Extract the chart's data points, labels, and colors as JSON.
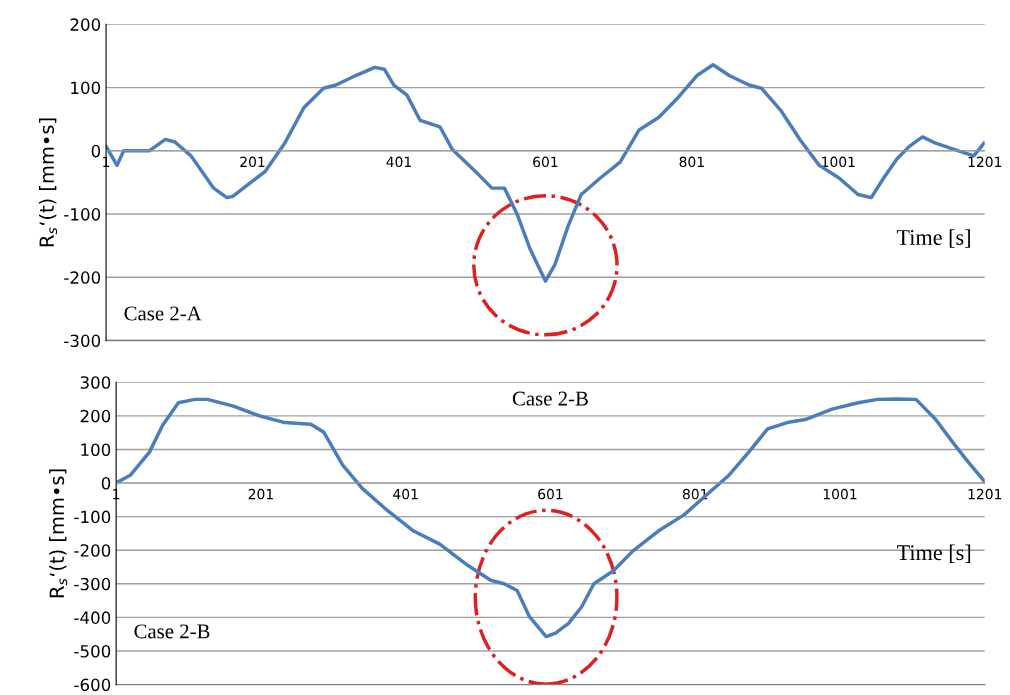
{
  "chart_data": [
    {
      "type": "line",
      "xlabel": "Time [s]",
      "ylabel": "R$_{s}$‘(t) [mm•s]",
      "annotations": [
        "Case 2-A"
      ],
      "series": [
        {
          "color": "#4a7ebb",
          "x": [
            1,
            16,
            25,
            60,
            82,
            95,
            117,
            148,
            166,
            174,
            201,
            218,
            245,
            271,
            298,
            315,
            342,
            368,
            381,
            394,
            412,
            430,
            457,
            474,
            510,
            528,
            545,
            562,
            580,
            601,
            614,
            632,
            650,
            676,
            703,
            729,
            756,
            782,
            808,
            830,
            852,
            879,
            896,
            923,
            949,
            975,
            1002,
            1028,
            1046,
            1063,
            1081,
            1098,
            1116,
            1134,
            1160,
            1186,
            1200
          ],
          "values": [
            7,
            -23,
            0,
            0,
            18,
            14,
            -8,
            -59,
            -74,
            -72,
            -48,
            -33,
            12,
            68,
            99,
            104,
            119,
            132,
            129,
            104,
            88,
            48,
            38,
            2,
            -38,
            -59,
            -59,
            -99,
            -155,
            -206,
            -180,
            -119,
            -69,
            -43,
            -18,
            33,
            53,
            84,
            119,
            136,
            119,
            104,
            99,
            63,
            17,
            -23,
            -43,
            -69,
            -74,
            -43,
            -13,
            7,
            22,
            12,
            2,
            -8,
            12
          ]
        }
      ],
      "xlim": [
        1,
        1201
      ],
      "xticks": [
        1,
        201,
        401,
        601,
        801,
        1001,
        1201
      ],
      "ylim": [
        -300,
        200
      ],
      "yticks": [
        -300,
        -200,
        -100,
        0,
        100,
        200
      ],
      "grid": "y",
      "line_style": "solid",
      "marker": "none"
    },
    {
      "type": "line",
      "xlabel": "Time [s]",
      "ylabel": "R$_{s}$‘(t) [mm•s]",
      "annotations": [
        "Case 2-B",
        "Case 2-B"
      ],
      "series": [
        {
          "color": "#4a7ebb",
          "x": [
            1,
            21,
            47,
            65,
            87,
            110,
            127,
            163,
            199,
            234,
            270,
            288,
            314,
            341,
            377,
            412,
            448,
            484,
            519,
            537,
            555,
            572,
            595,
            608,
            626,
            644,
            661,
            688,
            715,
            750,
            786,
            822,
            848,
            875,
            901,
            928,
            955,
            990,
            1026,
            1053,
            1080,
            1106,
            1133,
            1160,
            1178,
            1201
          ],
          "values": [
            0,
            24,
            92,
            171,
            239,
            249,
            249,
            229,
            200,
            180,
            175,
            151,
            53,
            -16,
            -84,
            -143,
            -182,
            -241,
            -290,
            -300,
            -320,
            -398,
            -457,
            -447,
            -418,
            -369,
            -300,
            -261,
            -202,
            -143,
            -94,
            -25,
            24,
            92,
            161,
            180,
            190,
            220,
            239,
            249,
            250,
            249,
            190,
            112,
            63,
            4
          ]
        }
      ],
      "xlim": [
        1,
        1201
      ],
      "xticks": [
        1,
        201,
        401,
        601,
        801,
        1001,
        1201
      ],
      "ylim": [
        -600,
        300
      ],
      "yticks": [
        -600,
        -500,
        -400,
        -300,
        -200,
        -100,
        0,
        100,
        200,
        300
      ],
      "grid": "y",
      "line_style": "solid",
      "marker": "none"
    }
  ]
}
